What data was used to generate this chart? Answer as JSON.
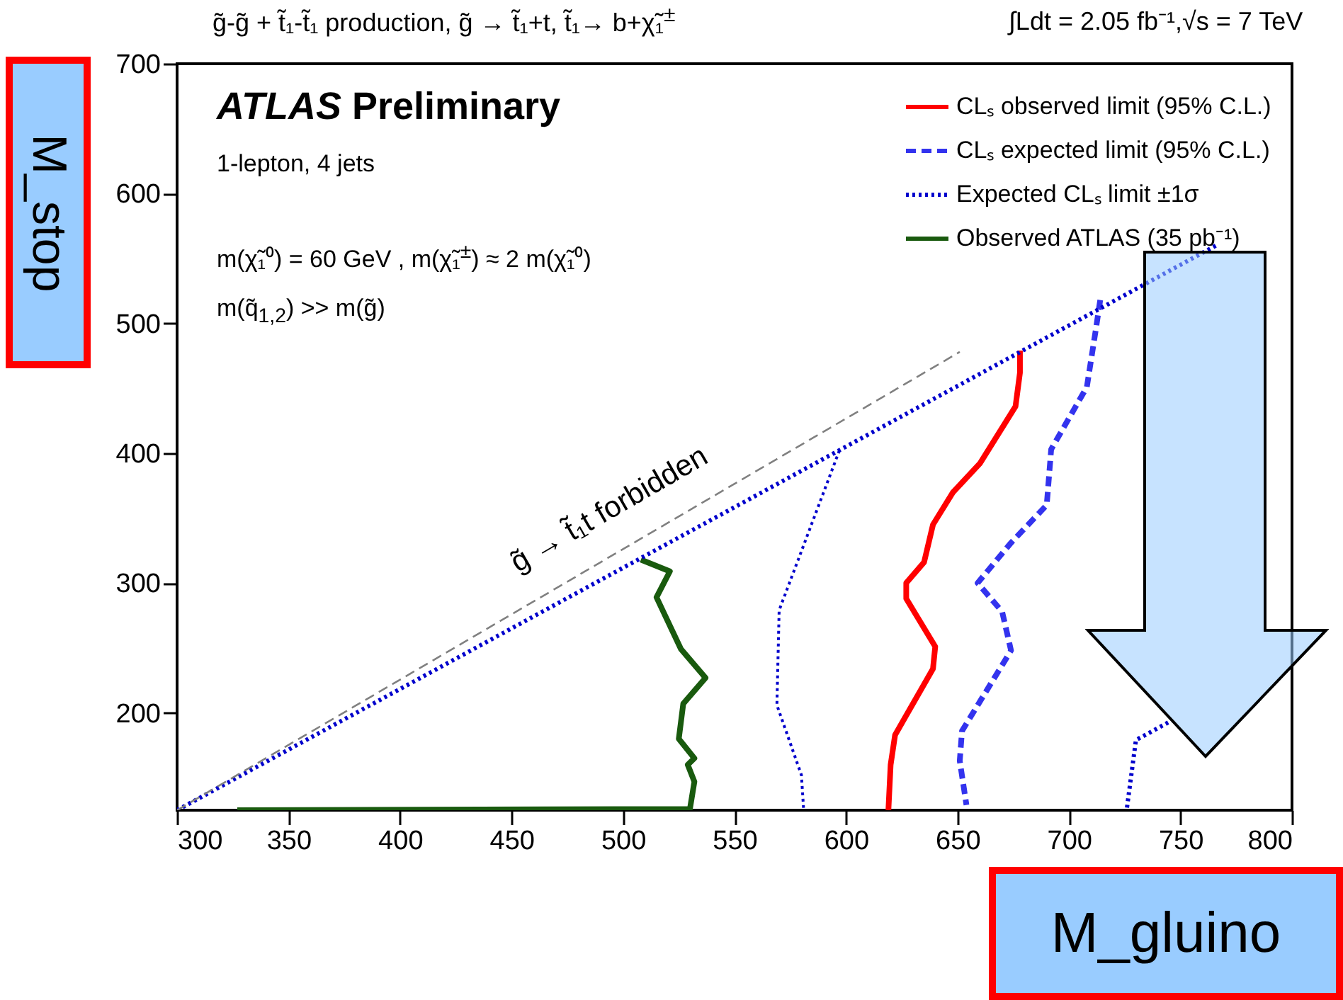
{
  "chart_data": {
    "type": "line",
    "title": "g̃-g̃ + t̃₁-t̃₁ production, g̃ → t̃₁+t,  t̃₁→ b+χ̃₁$^{±}$",
    "subtitle": "∫Ldt = 2.05 fb⁻¹,√s = 7 TeV",
    "xlabel": "M_gluino",
    "ylabel": "M_stop",
    "xlim": [
      300,
      800
    ],
    "xticks": [
      300,
      350,
      400,
      450,
      500,
      550,
      600,
      650,
      700,
      750,
      800
    ],
    "ylim": [
      125,
      700
    ],
    "yticks": [
      200,
      300,
      400,
      500,
      600,
      700
    ],
    "legend": "top right",
    "annotations": [
      "g̃ → t̃₁t forbidden",
      "ATLAS Preliminary",
      "1-lepton, 4 jets",
      "m(χ̃₁⁰) = 60 GeV , m(χ̃₁$^{±}$) ≈ 2 m(χ̃₁⁰)",
      "m(q̃$_{1,2}$) >> m(g̃)"
    ],
    "series": [
      {
        "name": "CLₛ observed limit (95% C.L.)",
        "color": "#ff0000",
        "line_style": "solid",
        "x": [
          678,
          678,
          676,
          660,
          648,
          639,
          635,
          627,
          627,
          640,
          639,
          622,
          620,
          619
        ],
        "values": [
          479,
          462,
          436,
          392,
          370,
          345,
          316,
          300,
          288,
          251,
          234,
          183,
          160,
          125
        ]
      },
      {
        "name": "CLₛ expected limit (95% C.L.)",
        "color": "#3333ee",
        "line_style": "dashed",
        "x": [
          714,
          712,
          708,
          692,
          690,
          674,
          659,
          670,
          674,
          652,
          651,
          654
        ],
        "values": [
          518,
          495,
          451,
          403,
          360,
          331,
          300,
          278,
          248,
          186,
          163,
          129
        ]
      },
      {
        "name": "Expected CLₛ limit ±1σ",
        "color": "#0000cc",
        "line_style": "dotted",
        "x": [
          597,
          570,
          569,
          580,
          581
        ],
        "values": [
          402,
          279,
          206,
          152,
          125
        ]
      },
      {
        "name": "Observed ATLAS (35 pb⁻¹)",
        "color": "#195a0e",
        "line_style": "solid",
        "x": [
          327,
          530,
          532,
          529,
          532,
          525,
          527,
          537,
          526,
          515,
          521,
          508
        ],
        "values": [
          125,
          126,
          147,
          160,
          165,
          180,
          207,
          227,
          249,
          289,
          309,
          318
        ]
      },
      {
        "color": "#0000cc",
        "line_style": "dotted",
        "x": [
          726,
          730,
          746
        ],
        "values": [
          127,
          179,
          194
        ]
      },
      {
        "color": "#0000cc",
        "line_style": "dotted",
        "x": [
          300,
          767
        ],
        "values": [
          125,
          561
        ]
      },
      {
        "color": "#808080",
        "line_style": "dashed",
        "x": [
          300,
          651
        ],
        "values": [
          125,
          478
        ]
      }
    ]
  }
}
